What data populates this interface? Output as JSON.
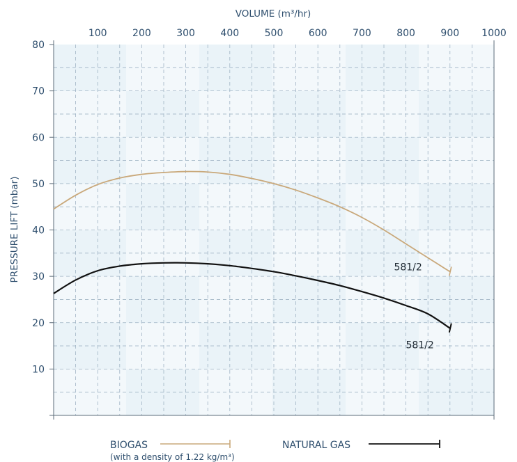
{
  "chart_data": {
    "type": "line",
    "xlabel": "VOLUME (m³/hr)",
    "ylabel": "PRESSURE LIFT (mbar)",
    "xlim": [
      0,
      1000
    ],
    "ylim": [
      0,
      80
    ],
    "x_ticks": [
      "100",
      "200",
      "300",
      "400",
      "500",
      "600",
      "700",
      "800",
      "900",
      "1000"
    ],
    "y_ticks": [
      "10",
      "20",
      "30",
      "40",
      "50",
      "60",
      "70",
      "80"
    ],
    "grid": true,
    "legend_position": "bottom",
    "series": [
      {
        "name": "BIOGAS",
        "note": "(with a density of 1.22 kg/m³)",
        "color": "#c9a87a",
        "end_label": "581/2",
        "x": [
          0,
          50,
          100,
          150,
          200,
          250,
          300,
          350,
          400,
          450,
          500,
          550,
          600,
          650,
          700,
          750,
          800,
          850,
          900
        ],
        "y": [
          44.5,
          47.5,
          49.8,
          51.2,
          52.0,
          52.4,
          52.6,
          52.5,
          52.0,
          51.1,
          50.0,
          48.6,
          46.9,
          45.0,
          42.7,
          40.0,
          37.0,
          34.0,
          31.0
        ]
      },
      {
        "name": "NATURAL GAS",
        "color": "#111111",
        "end_label": "581/2",
        "x": [
          0,
          50,
          100,
          150,
          200,
          250,
          300,
          350,
          400,
          450,
          500,
          550,
          600,
          650,
          700,
          750,
          800,
          850,
          900
        ],
        "y": [
          26.3,
          29.2,
          31.2,
          32.2,
          32.7,
          32.9,
          32.9,
          32.7,
          32.3,
          31.7,
          31.0,
          30.1,
          29.1,
          28.0,
          26.7,
          25.3,
          23.7,
          21.9,
          18.8
        ]
      }
    ]
  }
}
